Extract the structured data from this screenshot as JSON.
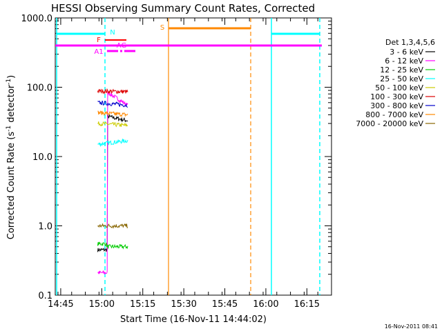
{
  "chart_data": {
    "type": "line",
    "title": "HESSI Observing Summary Count Rates, Corrected",
    "xlabel": "Start Time (16-Nov-11 14:44:02)",
    "ylabel_main": "Corrected Count Rate (s",
    "ylabel_sup1": "-1",
    "ylabel_mid": " detector",
    "ylabel_sup2": "-1",
    "ylabel_end": ")",
    "yscale": "log",
    "ylim": [
      0.1,
      1000
    ],
    "xlim_minutes": [
      -1,
      100
    ],
    "y_ticks": [
      {
        "value": 1000,
        "label": "1000.0"
      },
      {
        "value": 100,
        "label": "100.0"
      },
      {
        "value": 10,
        "label": "10.0"
      },
      {
        "value": 1,
        "label": "1.0"
      },
      {
        "value": 0.1,
        "label": "0.1"
      }
    ],
    "x_ticks": [
      {
        "minutes": 1,
        "label": "14:45"
      },
      {
        "minutes": 16,
        "label": "15:00"
      },
      {
        "minutes": 31,
        "label": "15:15"
      },
      {
        "minutes": 46,
        "label": "15:30"
      },
      {
        "minutes": 61,
        "label": "15:45"
      },
      {
        "minutes": 76,
        "label": "16:00"
      },
      {
        "minutes": 91,
        "label": "16:15"
      }
    ],
    "legend_title": "Det 1,3,4,5,6",
    "legend_position": "right",
    "series": [
      {
        "name": "3 - 6 keV",
        "color": "#000000",
        "x": [
          14.5,
          18.0,
          18.01,
          25.5
        ],
        "y": [
          0.45,
          0.45,
          38,
          33
        ]
      },
      {
        "name": "6 - 12 keV",
        "color": "#ff00ff",
        "x": [
          14.5,
          18.0,
          18.01,
          25.5
        ],
        "y": [
          0.21,
          0.21,
          85,
          55
        ]
      },
      {
        "name": "12 - 25 keV",
        "color": "#00cc00",
        "x": [
          14.5,
          17.5,
          18.01,
          25.5
        ],
        "y": [
          0.55,
          0.55,
          0.5,
          0.5
        ]
      },
      {
        "name": "25 - 50 keV",
        "color": "#00ffff",
        "x": [
          14.5,
          25.5
        ],
        "y": [
          15,
          17
        ]
      },
      {
        "name": "50 - 100 keV",
        "color": "#cccc00",
        "x": [
          14.5,
          25.5
        ],
        "y": [
          30,
          28
        ]
      },
      {
        "name": "100 - 300 keV",
        "color": "#dd0000",
        "x": [
          14.5,
          25.5
        ],
        "y": [
          88,
          86
        ]
      },
      {
        "name": "300 - 800 keV",
        "color": "#0000cc",
        "x": [
          14.5,
          25.5
        ],
        "y": [
          60,
          55
        ]
      },
      {
        "name": "800 - 7000 keV",
        "color": "#ff8800",
        "x": [
          14.5,
          25.5
        ],
        "y": [
          43,
          40
        ]
      },
      {
        "name": "7000 - 20000 keV",
        "color": "#886600",
        "x": [
          14.5,
          25.5
        ],
        "y": [
          1.0,
          1.0
        ]
      }
    ],
    "state_bars": [
      {
        "label": "N",
        "color": "#00ffff"
      },
      {
        "label": "F",
        "color": "#ff0000"
      },
      {
        "label": "AG",
        "color": "#ff00ff"
      },
      {
        "label": "A1",
        "color": "#ff00ff"
      },
      {
        "label": "S",
        "color": "#ff8800"
      }
    ],
    "timestamp": "16-Nov-2011 08:41"
  }
}
